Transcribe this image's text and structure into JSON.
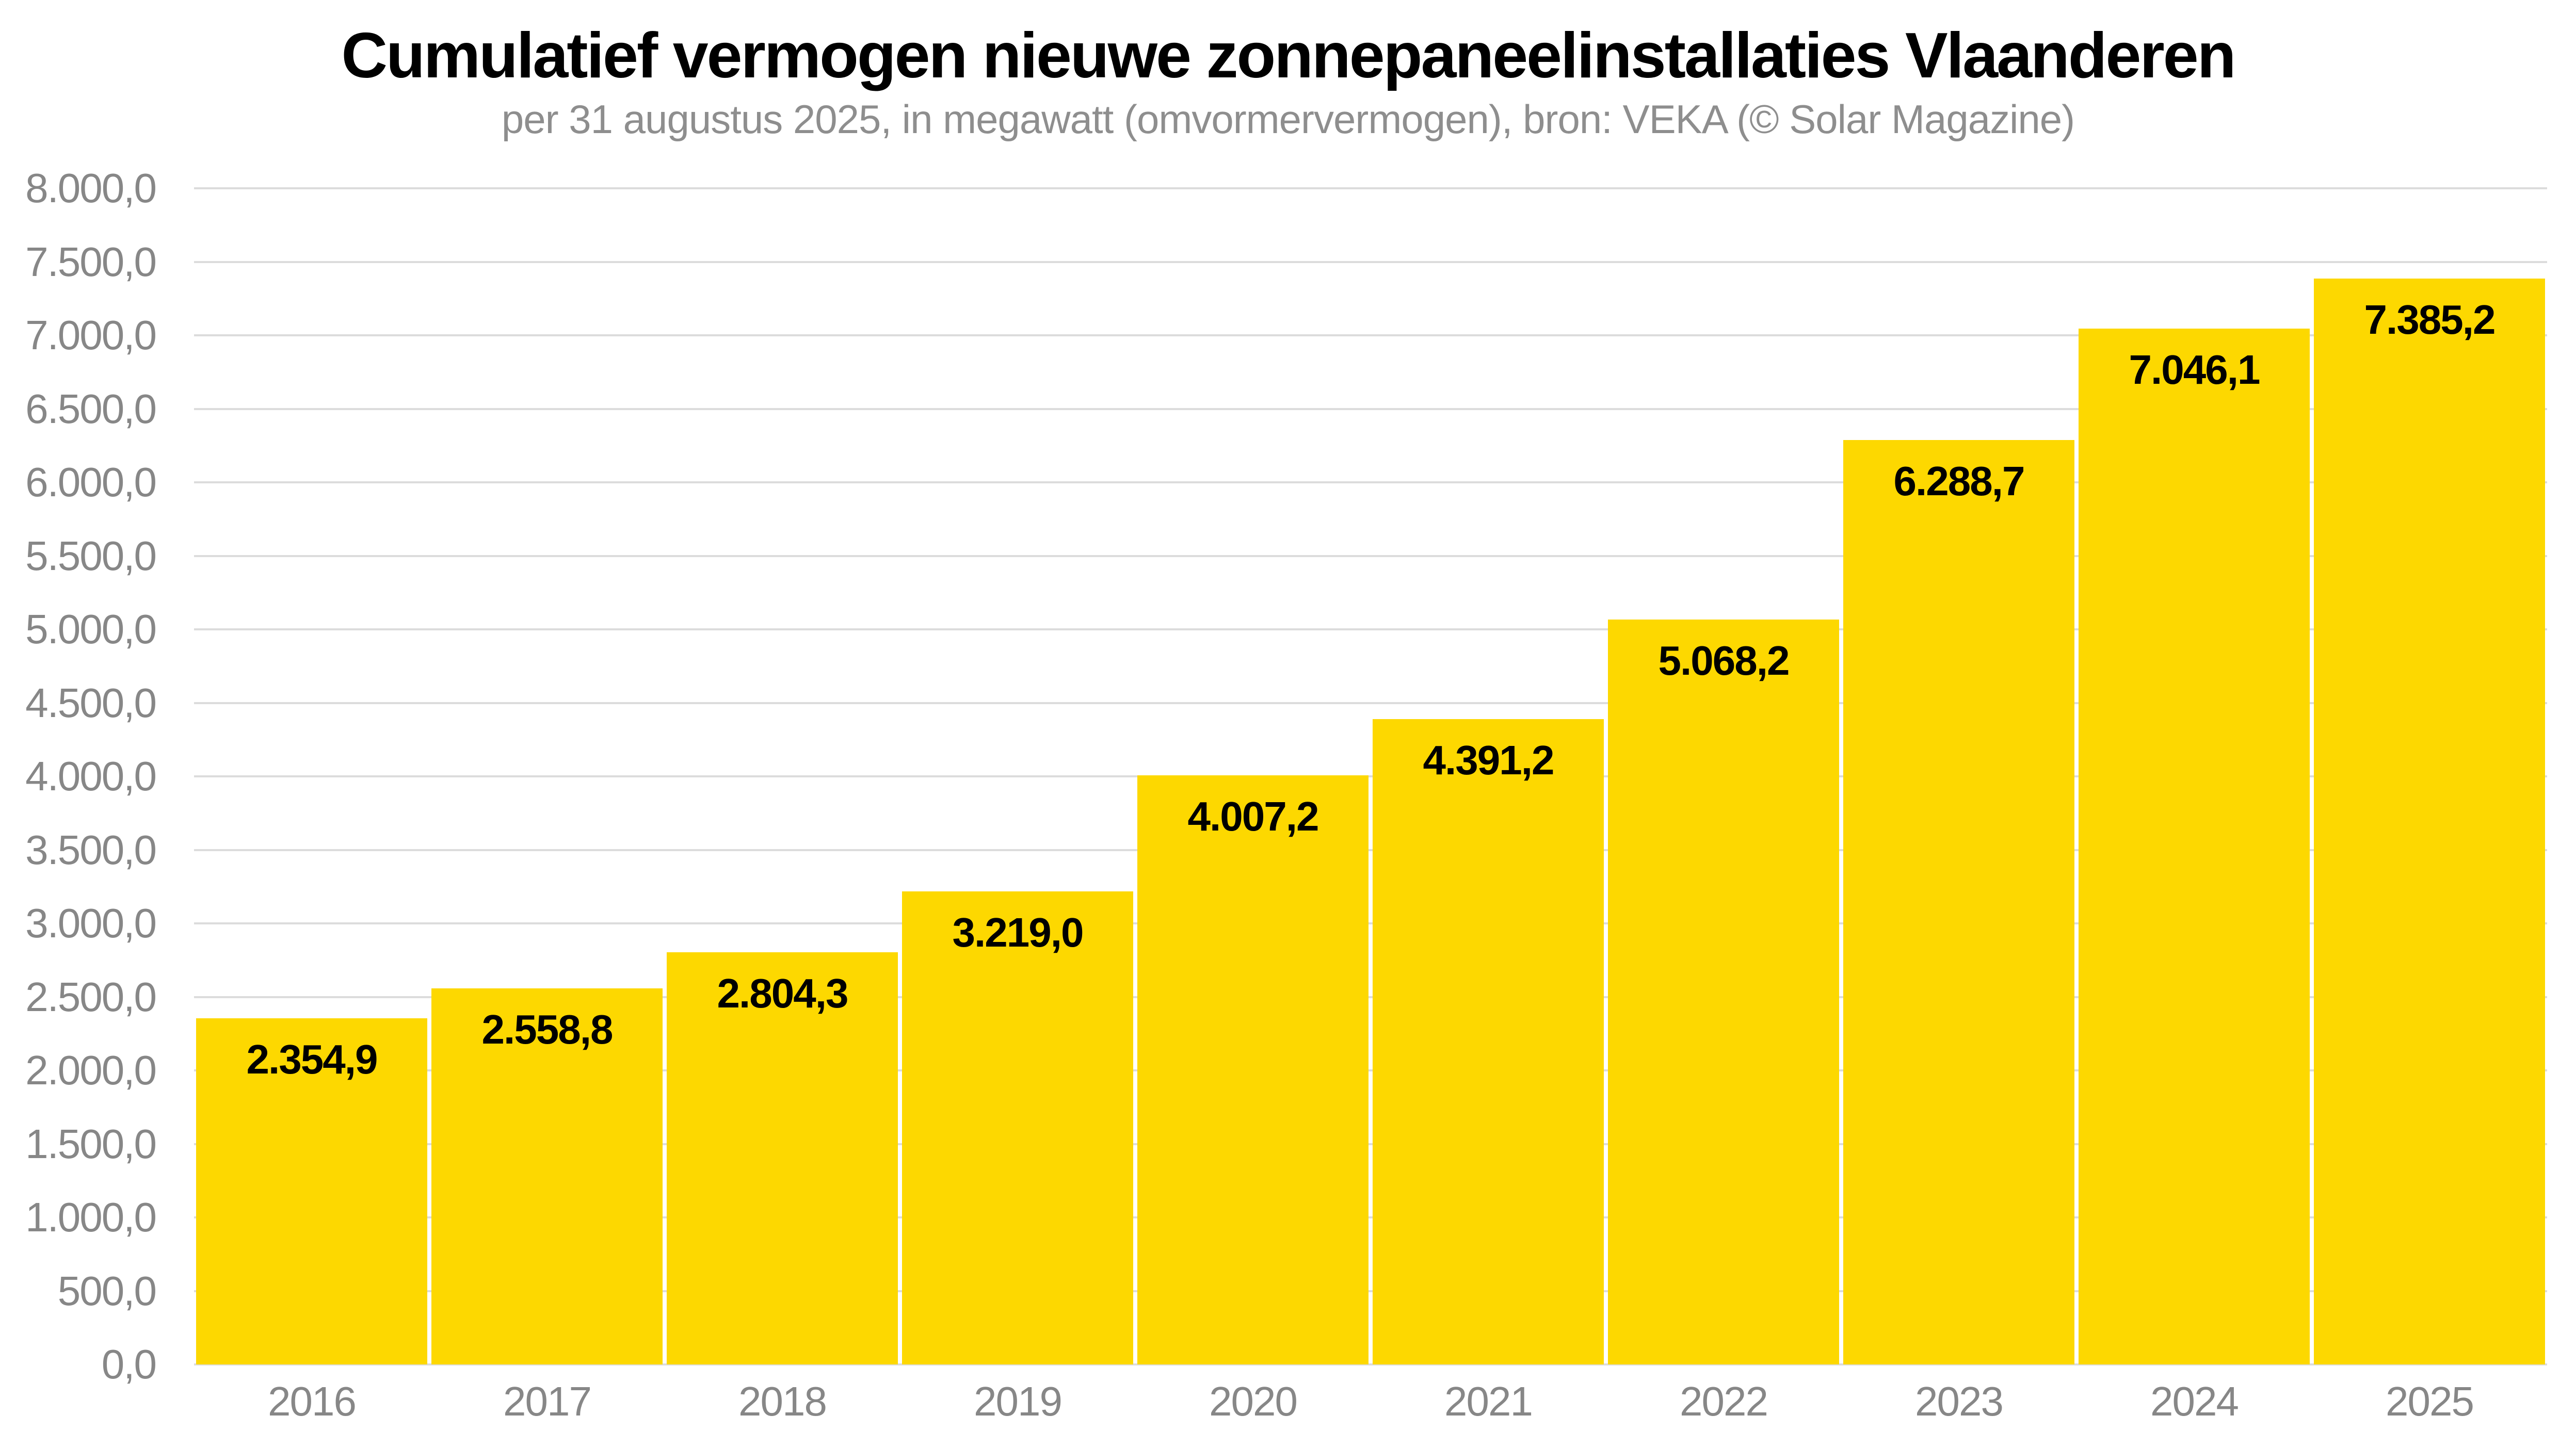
{
  "chart_data": {
    "type": "bar",
    "title": "Cumulatief vermogen nieuwe zonnepaneelinstallaties Vlaanderen",
    "subtitle": "per 31 augustus 2025, in megawatt (omvormervermogen), bron: VEKA (© Solar Magazine)",
    "categories": [
      "2016",
      "2017",
      "2018",
      "2019",
      "2020",
      "2021",
      "2022",
      "2023",
      "2024",
      "2025"
    ],
    "values": [
      2354.9,
      2558.8,
      2804.3,
      3219.0,
      4007.2,
      4391.2,
      5068.2,
      6288.7,
      7046.1,
      7385.2
    ],
    "value_labels": [
      "2.354,9",
      "2.558,8",
      "2.804,3",
      "3.219,0",
      "4.007,2",
      "4.391,2",
      "5.068,2",
      "6.288,7",
      "7.046,1",
      "7.385,2"
    ],
    "xlabel": "",
    "ylabel": "",
    "ylim": [
      0,
      8000
    ],
    "ytick_step": 500,
    "yticks": [
      "8.000,0",
      "7.500,0",
      "7.000,0",
      "6.500,0",
      "6.000,0",
      "5.500,0",
      "5.000,0",
      "4.500,0",
      "4.000,0",
      "3.500,0",
      "3.000,0",
      "2.500,0",
      "2.000,0",
      "1.500,0",
      "1.000,0",
      "500,0",
      "0,0"
    ],
    "grid": "horizontal",
    "legend": "none",
    "colors": {
      "bar": "#FDD800",
      "gridline": "#DCDCDC",
      "axis_label": "#878787",
      "title": "#000000",
      "subtitle": "#8E8E8E",
      "value_label": "#000000",
      "background": "#FFFFFF"
    }
  }
}
